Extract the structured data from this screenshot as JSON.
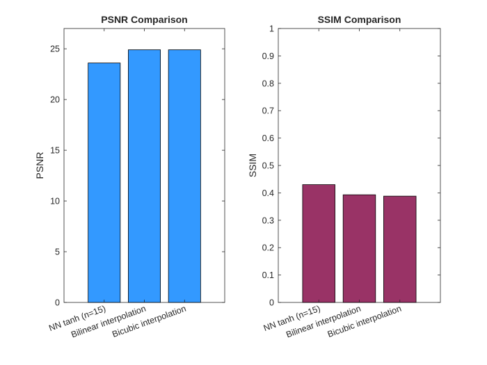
{
  "chart_data": [
    {
      "type": "bar",
      "title": "PSNR Comparison",
      "xlabel": "",
      "ylabel": "PSNR",
      "categories": [
        "NN tanh (n=15)",
        "Bilinear interpolation",
        "Bicubic interpolation"
      ],
      "values": [
        23.6,
        24.9,
        24.9
      ],
      "ylim": [
        0,
        27
      ],
      "yticks": [
        0,
        5,
        10,
        15,
        20,
        25
      ],
      "ytick_labels": [
        "0",
        "5",
        "10",
        "15",
        "20",
        "25"
      ],
      "bar_color": "#3399ff"
    },
    {
      "type": "bar",
      "title": "SSIM Comparison",
      "xlabel": "",
      "ylabel": "SSIM",
      "categories": [
        "NN tanh (n=15)",
        "Bilinear interpolation",
        "Bicubic interpolation"
      ],
      "values": [
        0.43,
        0.393,
        0.388
      ],
      "ylim": [
        0,
        1
      ],
      "yticks": [
        0,
        0.1,
        0.2,
        0.3,
        0.4,
        0.5,
        0.6,
        0.7,
        0.8,
        0.9,
        1
      ],
      "ytick_labels": [
        "0",
        "0.1",
        "0.2",
        "0.3",
        "0.4",
        "0.5",
        "0.6",
        "0.7",
        "0.8",
        "0.9",
        "1"
      ],
      "bar_color": "#993366"
    }
  ]
}
